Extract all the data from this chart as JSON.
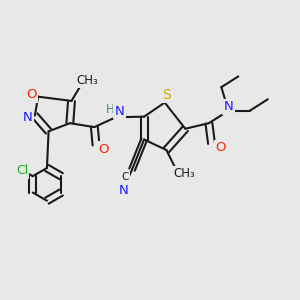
{
  "bg_color": "#e8e8e8",
  "bond_color": "#1a1a1a",
  "atom_colors": {
    "N": "#1a1aff",
    "O": "#ff2200",
    "S": "#ccaa00",
    "Cl": "#22aa22",
    "C": "#1a1a1a",
    "H": "#4a8888"
  }
}
